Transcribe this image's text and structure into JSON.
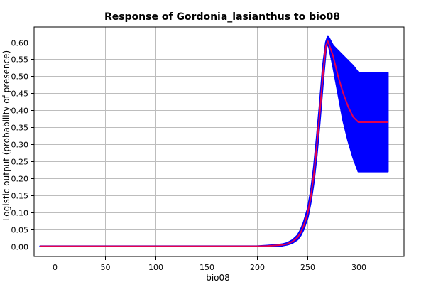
{
  "chart_data": {
    "type": "line",
    "title": "Response of Gordonia_lasianthus to bio08",
    "xlabel": "bio08",
    "ylabel": "Logistic output (probability of presence)",
    "xlim": [
      -20,
      345
    ],
    "ylim": [
      -0.03,
      0.645
    ],
    "xticks": [
      0,
      50,
      100,
      150,
      200,
      250,
      300
    ],
    "yticks": [
      0.0,
      0.05,
      0.1,
      0.15,
      0.2,
      0.25,
      0.3,
      0.35,
      0.4,
      0.45,
      0.5,
      0.55,
      0.6
    ],
    "grid": true,
    "legend": "none",
    "series": [
      {
        "role": "upper-band",
        "color": "#0000ff",
        "x": [
          -14,
          200,
          210,
          220,
          225,
          230,
          235,
          240,
          243,
          246,
          250,
          253,
          256,
          259,
          262,
          265,
          268,
          270,
          275,
          280,
          285,
          290,
          295,
          300,
          310,
          320,
          329
        ],
        "y": [
          0.0,
          0.0,
          0.002,
          0.004,
          0.006,
          0.01,
          0.018,
          0.032,
          0.048,
          0.07,
          0.11,
          0.16,
          0.23,
          0.32,
          0.42,
          0.53,
          0.6,
          0.618,
          0.59,
          0.575,
          0.56,
          0.545,
          0.53,
          0.51,
          0.51,
          0.51,
          0.51
        ]
      },
      {
        "role": "lower-band",
        "color": "#0000ff",
        "x": [
          -14,
          200,
          210,
          220,
          225,
          230,
          235,
          240,
          243,
          246,
          250,
          253,
          256,
          259,
          262,
          265,
          268,
          270,
          275,
          280,
          285,
          290,
          295,
          300,
          310,
          320,
          329
        ],
        "y": [
          0.0,
          0.0,
          0.0,
          0.001,
          0.002,
          0.005,
          0.01,
          0.02,
          0.032,
          0.05,
          0.085,
          0.13,
          0.19,
          0.27,
          0.37,
          0.48,
          0.58,
          0.6,
          0.53,
          0.45,
          0.37,
          0.31,
          0.26,
          0.22,
          0.22,
          0.22,
          0.22
        ]
      },
      {
        "role": "mean",
        "color": "#e4004f",
        "x": [
          -14,
          200,
          210,
          220,
          225,
          230,
          235,
          240,
          243,
          246,
          250,
          253,
          256,
          259,
          262,
          265,
          268,
          270,
          275,
          280,
          285,
          290,
          295,
          300,
          310,
          320,
          329
        ],
        "y": [
          0.0,
          0.0,
          0.001,
          0.003,
          0.004,
          0.007,
          0.014,
          0.026,
          0.04,
          0.06,
          0.097,
          0.145,
          0.21,
          0.295,
          0.395,
          0.505,
          0.59,
          0.603,
          0.56,
          0.5,
          0.45,
          0.41,
          0.38,
          0.365,
          0.365,
          0.365,
          0.365
        ]
      }
    ]
  }
}
